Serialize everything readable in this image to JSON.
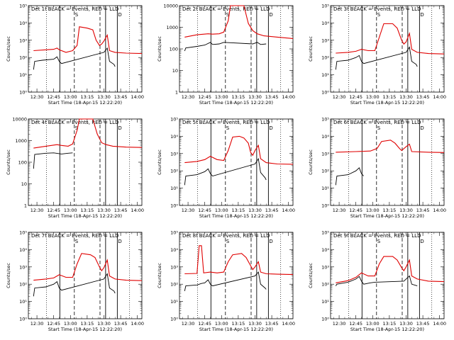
{
  "chart_data": {
    "type": "line",
    "xlabel": "Start Time (18-Apr-15 12:22:20)",
    "ylabel": "Counts/sec",
    "x_ticks": [
      "12:30",
      "12:45",
      "13:00",
      "13:15",
      "13:30",
      "13:45",
      "14:00"
    ],
    "x_tick_minutes": [
      30,
      45,
      60,
      75,
      90,
      105,
      120
    ],
    "xlim_minutes": [
      22.33,
      124
    ],
    "series_colors": {
      "events": "#000000",
      "lld": "#e00000"
    },
    "legend_text": [
      "BLACK = Events,",
      "RED = LLD"
    ],
    "markers": {
      "dotted": [
        38.5,
        113
      ],
      "solid": [
        50.5,
        91.5,
        102
      ],
      "dashed": [
        63.5,
        86.5
      ]
    },
    "flag_labels": [
      "S",
      "D"
    ],
    "panels": [
      {
        "title": "Det 1f",
        "yscale": "log",
        "ylim": [
          1,
          100000
        ],
        "yticks": [
          1,
          10,
          100,
          1000,
          10000,
          100000
        ],
        "ytick_labels": [
          "10⁰",
          "10¹",
          "10²",
          "10³",
          "10⁴",
          "10⁵"
        ],
        "lld": [
          [
            27,
            250
          ],
          [
            38,
            280
          ],
          [
            45,
            300
          ],
          [
            48,
            350
          ],
          [
            50,
            280
          ],
          [
            56,
            200
          ],
          [
            62,
            250
          ],
          [
            66,
            500
          ],
          [
            68,
            6000
          ],
          [
            75,
            5000
          ],
          [
            80,
            4000
          ],
          [
            83,
            1000
          ],
          [
            86,
            500
          ],
          [
            88,
            600
          ],
          [
            90,
            900
          ],
          [
            93,
            2000
          ],
          [
            95,
            250
          ],
          [
            100,
            200
          ],
          [
            110,
            180
          ],
          [
            124,
            170
          ]
        ],
        "events": [
          [
            27,
            20
          ],
          [
            28,
            60
          ],
          [
            35,
            70
          ],
          [
            45,
            80
          ],
          [
            48,
            110
          ],
          [
            50,
            60
          ],
          [
            52,
            45
          ],
          [
            90,
            200
          ],
          [
            93,
            350
          ],
          [
            95,
            60
          ],
          [
            99,
            40
          ],
          [
            100,
            30
          ]
        ]
      },
      {
        "title": "Det 2f",
        "yscale": "log",
        "ylim": [
          1,
          10000
        ],
        "yticks": [
          1,
          10,
          100,
          1000,
          10000
        ],
        "ytick_labels": [
          "1",
          "10",
          "100",
          "1000",
          "10000"
        ],
        "lld": [
          [
            27,
            350
          ],
          [
            38,
            450
          ],
          [
            48,
            500
          ],
          [
            52,
            480
          ],
          [
            58,
            500
          ],
          [
            62,
            600
          ],
          [
            66,
            2000
          ],
          [
            68,
            10000
          ],
          [
            70,
            10000
          ],
          [
            80,
            10000
          ],
          [
            84,
            1500
          ],
          [
            88,
            700
          ],
          [
            92,
            500
          ],
          [
            98,
            400
          ],
          [
            110,
            350
          ],
          [
            124,
            300
          ]
        ],
        "events": [
          [
            27,
            80
          ],
          [
            28,
            110
          ],
          [
            38,
            130
          ],
          [
            45,
            150
          ],
          [
            50,
            200
          ],
          [
            52,
            160
          ],
          [
            58,
            170
          ],
          [
            62,
            200
          ],
          [
            88,
            170
          ],
          [
            92,
            200
          ],
          [
            95,
            160
          ],
          [
            100,
            170
          ]
        ]
      },
      {
        "title": "Det 3f",
        "yscale": "log",
        "ylim": [
          1,
          100000
        ],
        "yticks": [
          1,
          10,
          100,
          1000,
          10000,
          100000
        ],
        "ytick_labels": [
          "10⁰",
          "10¹",
          "10²",
          "10³",
          "10⁴",
          "10⁵"
        ],
        "lld": [
          [
            27,
            180
          ],
          [
            38,
            200
          ],
          [
            45,
            230
          ],
          [
            50,
            300
          ],
          [
            56,
            250
          ],
          [
            62,
            250
          ],
          [
            66,
            1500
          ],
          [
            70,
            9000
          ],
          [
            78,
            9000
          ],
          [
            82,
            5000
          ],
          [
            86,
            1000
          ],
          [
            88,
            600
          ],
          [
            90,
            800
          ],
          [
            93,
            2500
          ],
          [
            95,
            300
          ],
          [
            100,
            200
          ],
          [
            110,
            170
          ],
          [
            124,
            160
          ]
        ],
        "events": [
          [
            27,
            20
          ],
          [
            28,
            60
          ],
          [
            38,
            70
          ],
          [
            45,
            100
          ],
          [
            48,
            130
          ],
          [
            50,
            60
          ],
          [
            52,
            45
          ],
          [
            90,
            200
          ],
          [
            93,
            400
          ],
          [
            95,
            60
          ],
          [
            99,
            40
          ],
          [
            100,
            30
          ]
        ]
      },
      {
        "title": "Det 4f",
        "yscale": "log",
        "ylim": [
          1,
          10000
        ],
        "yticks": [
          1,
          10,
          100,
          1000,
          10000
        ],
        "ytick_labels": [
          "1",
          "10",
          "100",
          "1000",
          "10000"
        ],
        "lld": [
          [
            27,
            450
          ],
          [
            38,
            550
          ],
          [
            48,
            650
          ],
          [
            52,
            600
          ],
          [
            58,
            550
          ],
          [
            62,
            700
          ],
          [
            66,
            3000
          ],
          [
            68,
            10000
          ],
          [
            70,
            10000
          ],
          [
            80,
            10000
          ],
          [
            84,
            2000
          ],
          [
            88,
            800
          ],
          [
            92,
            650
          ],
          [
            98,
            550
          ],
          [
            110,
            500
          ],
          [
            124,
            480
          ]
        ],
        "events": [
          [
            27,
            50
          ],
          [
            28,
            230
          ],
          [
            38,
            260
          ],
          [
            45,
            270
          ],
          [
            50,
            250
          ],
          [
            52,
            240
          ],
          [
            58,
            260
          ],
          [
            62,
            270
          ]
        ]
      },
      {
        "title": "Det 5f",
        "yscale": "log",
        "ylim": [
          1,
          100000
        ],
        "yticks": [
          1,
          10,
          100,
          1000,
          10000,
          100000
        ],
        "ytick_labels": [
          "10⁰",
          "10¹",
          "10²",
          "10³",
          "10⁴",
          "10⁵"
        ],
        "lld": [
          [
            27,
            300
          ],
          [
            38,
            350
          ],
          [
            45,
            450
          ],
          [
            50,
            700
          ],
          [
            56,
            450
          ],
          [
            62,
            400
          ],
          [
            66,
            1500
          ],
          [
            70,
            9000
          ],
          [
            76,
            10000
          ],
          [
            80,
            8000
          ],
          [
            84,
            4000
          ],
          [
            86,
            1200
          ],
          [
            88,
            800
          ],
          [
            90,
            1500
          ],
          [
            93,
            3000
          ],
          [
            95,
            500
          ],
          [
            100,
            300
          ],
          [
            110,
            250
          ],
          [
            124,
            240
          ]
        ],
        "events": [
          [
            27,
            15
          ],
          [
            28,
            50
          ],
          [
            38,
            60
          ],
          [
            45,
            90
          ],
          [
            48,
            130
          ],
          [
            50,
            70
          ],
          [
            52,
            50
          ],
          [
            90,
            250
          ],
          [
            93,
            500
          ],
          [
            95,
            80
          ],
          [
            99,
            40
          ],
          [
            100,
            30
          ]
        ]
      },
      {
        "title": "Det 6f",
        "yscale": "log",
        "ylim": [
          1,
          100000
        ],
        "yticks": [
          1,
          10,
          100,
          1000,
          10000,
          100000
        ],
        "ytick_labels": [
          "10⁰",
          "10¹",
          "10²",
          "10³",
          "10⁴",
          "10⁵"
        ],
        "lld": [
          [
            27,
            1200
          ],
          [
            45,
            1300
          ],
          [
            58,
            1400
          ],
          [
            64,
            2000
          ],
          [
            68,
            5000
          ],
          [
            76,
            6000
          ],
          [
            80,
            4000
          ],
          [
            84,
            2000
          ],
          [
            86,
            1500
          ],
          [
            90,
            2500
          ],
          [
            93,
            3500
          ],
          [
            95,
            1300
          ],
          [
            110,
            1200
          ],
          [
            124,
            1150
          ]
        ],
        "events": [
          [
            27,
            15
          ],
          [
            28,
            50
          ],
          [
            38,
            60
          ],
          [
            45,
            100
          ],
          [
            48,
            150
          ],
          [
            50,
            70
          ],
          [
            52,
            50
          ]
        ]
      },
      {
        "title": "Det 7f",
        "yscale": "log",
        "ylim": [
          1,
          100000
        ],
        "yticks": [
          1,
          10,
          100,
          1000,
          10000,
          100000
        ],
        "ytick_labels": [
          "10⁰",
          "10¹",
          "10²",
          "10³",
          "10⁴",
          "10⁵"
        ],
        "lld": [
          [
            27,
            170
          ],
          [
            38,
            200
          ],
          [
            45,
            230
          ],
          [
            50,
            350
          ],
          [
            56,
            250
          ],
          [
            62,
            250
          ],
          [
            66,
            1500
          ],
          [
            70,
            6000
          ],
          [
            78,
            5000
          ],
          [
            82,
            3500
          ],
          [
            86,
            1000
          ],
          [
            88,
            600
          ],
          [
            90,
            900
          ],
          [
            93,
            2500
          ],
          [
            95,
            300
          ],
          [
            100,
            200
          ],
          [
            110,
            170
          ],
          [
            124,
            160
          ]
        ],
        "events": [
          [
            27,
            20
          ],
          [
            28,
            60
          ],
          [
            38,
            70
          ],
          [
            45,
            100
          ],
          [
            48,
            140
          ],
          [
            50,
            60
          ],
          [
            52,
            45
          ],
          [
            90,
            200
          ],
          [
            93,
            400
          ],
          [
            95,
            60
          ],
          [
            99,
            40
          ],
          [
            100,
            30
          ]
        ]
      },
      {
        "title": "Det 8f",
        "yscale": "log",
        "ylim": [
          1,
          100000
        ],
        "yticks": [
          1,
          10,
          100,
          1000,
          10000,
          100000
        ],
        "ytick_labels": [
          "10⁰",
          "10¹",
          "10²",
          "10³",
          "10⁴",
          "10⁵"
        ],
        "lld": [
          [
            27,
            400
          ],
          [
            38,
            420
          ],
          [
            40,
            17000
          ],
          [
            42,
            17000
          ],
          [
            44,
            450
          ],
          [
            50,
            500
          ],
          [
            56,
            450
          ],
          [
            62,
            500
          ],
          [
            66,
            2000
          ],
          [
            70,
            5000
          ],
          [
            78,
            6000
          ],
          [
            82,
            3500
          ],
          [
            86,
            1200
          ],
          [
            88,
            700
          ],
          [
            90,
            1000
          ],
          [
            93,
            2000
          ],
          [
            95,
            500
          ],
          [
            100,
            400
          ],
          [
            110,
            380
          ],
          [
            124,
            360
          ]
        ],
        "events": [
          [
            27,
            40
          ],
          [
            28,
            80
          ],
          [
            38,
            90
          ],
          [
            42,
            110
          ],
          [
            45,
            120
          ],
          [
            48,
            180
          ],
          [
            50,
            100
          ],
          [
            52,
            80
          ],
          [
            90,
            300
          ],
          [
            93,
            500
          ],
          [
            95,
            100
          ],
          [
            99,
            60
          ],
          [
            100,
            50
          ]
        ]
      },
      {
        "title": "Det 9f",
        "yscale": "log",
        "ylim": [
          1,
          100000
        ],
        "yticks": [
          1,
          10,
          100,
          1000,
          10000,
          100000
        ],
        "ytick_labels": [
          "10⁰",
          "10¹",
          "10²",
          "10³",
          "10⁴",
          "10⁵"
        ],
        "lld": [
          [
            27,
            120
          ],
          [
            38,
            160
          ],
          [
            45,
            250
          ],
          [
            50,
            450
          ],
          [
            56,
            300
          ],
          [
            62,
            300
          ],
          [
            66,
            1500
          ],
          [
            70,
            4000
          ],
          [
            78,
            4000
          ],
          [
            82,
            2500
          ],
          [
            86,
            900
          ],
          [
            88,
            600
          ],
          [
            90,
            1000
          ],
          [
            93,
            2500
          ],
          [
            95,
            300
          ],
          [
            100,
            200
          ],
          [
            110,
            150
          ],
          [
            124,
            140
          ]
        ],
        "events": [
          [
            27,
            80
          ],
          [
            28,
            100
          ],
          [
            38,
            130
          ],
          [
            45,
            200
          ],
          [
            48,
            280
          ],
          [
            50,
            150
          ],
          [
            52,
            100
          ],
          [
            58,
            120
          ],
          [
            62,
            130
          ],
          [
            88,
            150
          ],
          [
            90,
            200
          ],
          [
            93,
            300
          ],
          [
            95,
            100
          ],
          [
            100,
            80
          ]
        ]
      }
    ]
  }
}
